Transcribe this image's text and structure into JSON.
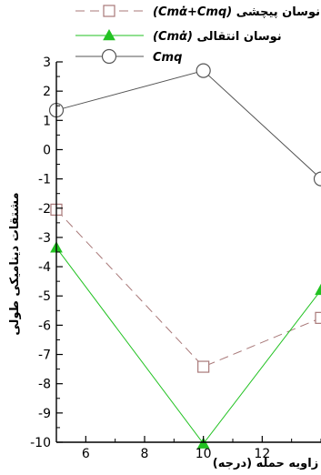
{
  "chart_data": {
    "type": "line",
    "xlabel": "زاویه حمله (درجه)",
    "ylabel": "مشتقات دینامیکی طولی",
    "xlim": [
      5,
      14
    ],
    "ylim": [
      -10,
      3
    ],
    "xticks": [
      6,
      8,
      10,
      12
    ],
    "yticks": [
      3,
      2,
      1,
      0,
      -1,
      -2,
      -3,
      -4,
      -5,
      -6,
      -7,
      -8,
      -9,
      -10
    ],
    "series": [
      {
        "name": "نوسان پیچشی",
        "formula": "(Cmα̇+Cmq)",
        "color": "#a87878",
        "marker": "square",
        "dashed": true,
        "x": [
          5,
          10,
          14
        ],
        "y": [
          -2.05,
          -7.42,
          -5.75
        ]
      },
      {
        "name": "نوسان انتقالی",
        "formula": "(Cmα̇)",
        "color": "#22c222",
        "marker": "triangle",
        "dashed": false,
        "x": [
          5,
          10,
          14
        ],
        "y": [
          -3.35,
          -10.05,
          -4.8
        ]
      },
      {
        "name": "",
        "formula": "Cmq",
        "color": "#555555",
        "marker": "circle",
        "dashed": false,
        "x": [
          5,
          10,
          14
        ],
        "y": [
          1.35,
          2.7,
          -1.0
        ]
      }
    ],
    "legend_position": "top"
  }
}
